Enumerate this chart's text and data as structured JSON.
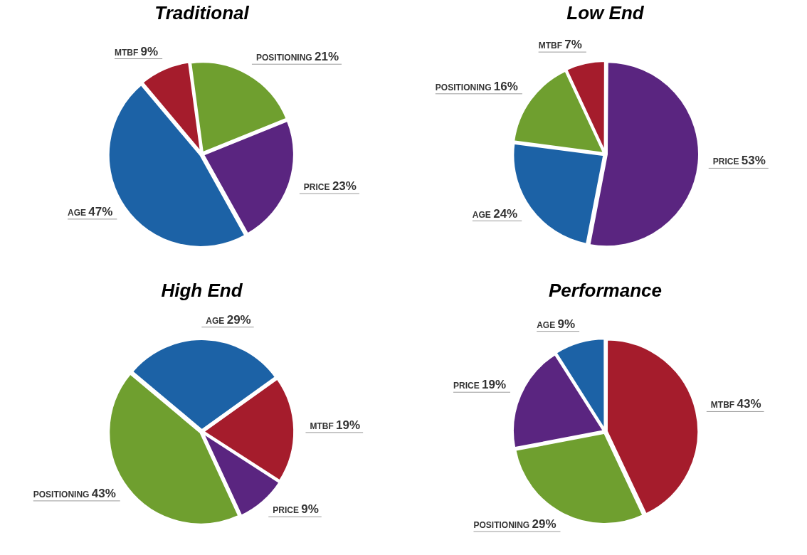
{
  "chart_data": [
    {
      "type": "pie",
      "title": "Traditional",
      "categories": [
        "MTBF",
        "POSITIONING",
        "PRICE",
        "AGE"
      ],
      "values": [
        9,
        21,
        23,
        47
      ],
      "value_labels": [
        "9%",
        "21%",
        "23%",
        "47%"
      ],
      "colors": [
        "#a51c2c",
        "#6f9f2f",
        "#5a2580",
        "#1c62a6"
      ],
      "legend": false
    },
    {
      "type": "pie",
      "title": "Low End",
      "categories": [
        "MTBF",
        "PRICE",
        "AGE",
        "POSITIONING"
      ],
      "values": [
        7,
        53,
        24,
        16
      ],
      "value_labels": [
        "7%",
        "53%",
        "24%",
        "16%"
      ],
      "colors": [
        "#a51c2c",
        "#5a2580",
        "#1c62a6",
        "#6f9f2f"
      ],
      "legend": false
    },
    {
      "type": "pie",
      "title": "High End",
      "categories": [
        "AGE",
        "MTBF",
        "PRICE",
        "POSITIONING"
      ],
      "values": [
        29,
        19,
        9,
        43
      ],
      "value_labels": [
        "29%",
        "19%",
        "9%",
        "43%"
      ],
      "colors": [
        "#1c62a6",
        "#a51c2c",
        "#5a2580",
        "#6f9f2f"
      ],
      "legend": false
    },
    {
      "type": "pie",
      "title": "Performance",
      "categories": [
        "MTBF",
        "POSITIONING",
        "PRICE",
        "AGE"
      ],
      "values": [
        43,
        29,
        19,
        9
      ],
      "value_labels": [
        "43%",
        "29%",
        "19%",
        "9%"
      ],
      "colors": [
        "#a51c2c",
        "#6f9f2f",
        "#5a2580",
        "#1c62a6"
      ],
      "legend": false
    }
  ]
}
